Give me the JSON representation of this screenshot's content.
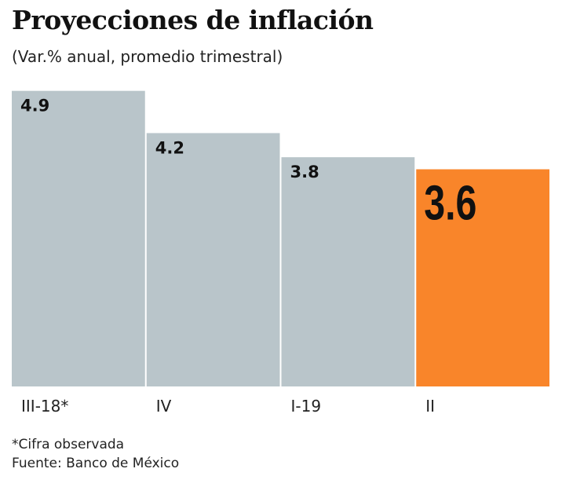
{
  "chart_data": {
    "type": "bar",
    "title": "Proyecciones de inflación",
    "subtitle": "(Var.% anual, promedio trimestral)",
    "categories": [
      "III-18*",
      "IV",
      "I-19",
      "II"
    ],
    "values": [
      4.9,
      4.2,
      3.8,
      3.6
    ],
    "data_labels": [
      "4.9",
      "4.2",
      "3.8",
      "3.6"
    ],
    "colors": [
      "#b9c5ca",
      "#b9c5ca",
      "#b9c5ca",
      "#f9852a"
    ],
    "highlight_index": 3,
    "ylim": [
      0,
      5
    ],
    "grid": false,
    "xlabel": "",
    "ylabel": ""
  },
  "notes": {
    "footnote": "*Cifra observada",
    "source": "Fuente: Banco de México"
  }
}
